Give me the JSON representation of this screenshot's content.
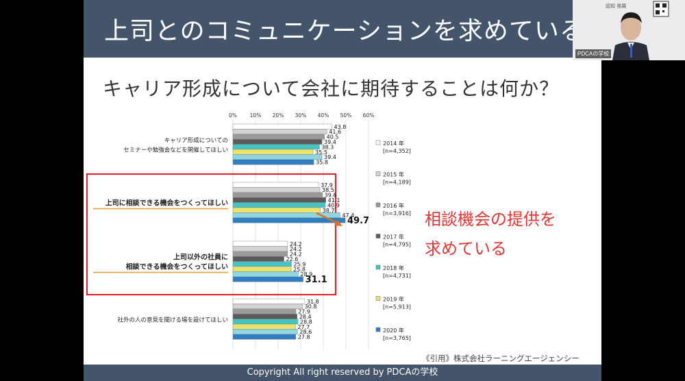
{
  "slide": {
    "title": "上司とのコミュニケーションを求めている",
    "question": "キャリア形成について会社に期待することは何か？",
    "callout_lines": [
      "相談機会の提供を",
      "求めている"
    ],
    "citation": "《引用》株式会社ラーニングエージェンシー",
    "footer": "Copyright All right reserved by PDCAの学校"
  },
  "webcam": {
    "name_tag": "PDCAの学校",
    "logo_text": "認知 発展"
  },
  "colors": {
    "header_bg": "#44546a",
    "highlight_box": "#d9262c",
    "callout_text": "#e23636",
    "underline": "#e8a33c",
    "arrow": "#e07020"
  },
  "chart_data": {
    "type": "bar",
    "orientation": "horizontal",
    "x_ticks": [
      "0%",
      "10%",
      "20%",
      "30%",
      "40%",
      "50%",
      "60%"
    ],
    "xlim": [
      0,
      60
    ],
    "grid": true,
    "legend_position": "right",
    "categories": [
      {
        "lines": [
          "キャリア形成についての",
          "セミナーや勉強会などを開催してほしい"
        ],
        "emphasized": false
      },
      {
        "lines": [
          "上司に相談できる機会をつくってほしい"
        ],
        "emphasized": true
      },
      {
        "lines": [
          "上司以外の社員に",
          "相談できる機会をつくってほしい"
        ],
        "emphasized": true
      },
      {
        "lines": [
          "社外の人の意見を聞ける場を設けてほしい"
        ],
        "emphasized": false
      }
    ],
    "series": [
      {
        "name": "2014 年",
        "n": "[n=4,352]",
        "color": "#ffffff",
        "values": [
          43.8,
          37.9,
          24.2,
          31.8
        ]
      },
      {
        "name": "2015 年",
        "n": "[n=4,189]",
        "color": "#d3d3d3",
        "values": [
          41.6,
          38.5,
          24.2,
          30.8
        ]
      },
      {
        "name": "2016 年",
        "n": "[n=3,916]",
        "color": "#9a9a9a",
        "values": [
          40.5,
          39.6,
          24.2,
          27.9
        ]
      },
      {
        "name": "2017 年",
        "n": "[n=4,795]",
        "color": "#5a5a5a",
        "values": [
          39.4,
          41.1,
          22.6,
          28.4
        ]
      },
      {
        "name": "2018 年",
        "n": "[n=4,731]",
        "color": "#44c4c4",
        "values": [
          38.3,
          40.9,
          25.9,
          28.8
        ]
      },
      {
        "name": "2019 年",
        "n": "[n=5,913]",
        "color": "#ece46a",
        "values": [
          35.5,
          38.7,
          25.8,
          27.7
        ]
      },
      {
        "name": "",
        "n": "",
        "color": "#8fd6e3",
        "values": [
          39.4,
          47.4,
          28.9,
          28.6
        ]
      },
      {
        "name": "2020 年",
        "n": "[n=3,765]",
        "color": "#2f7ec2",
        "values": [
          35.8,
          49.7,
          31.1,
          27.8
        ]
      }
    ],
    "emphasized_values": [
      [
        1,
        7
      ],
      [
        2,
        7
      ]
    ]
  }
}
